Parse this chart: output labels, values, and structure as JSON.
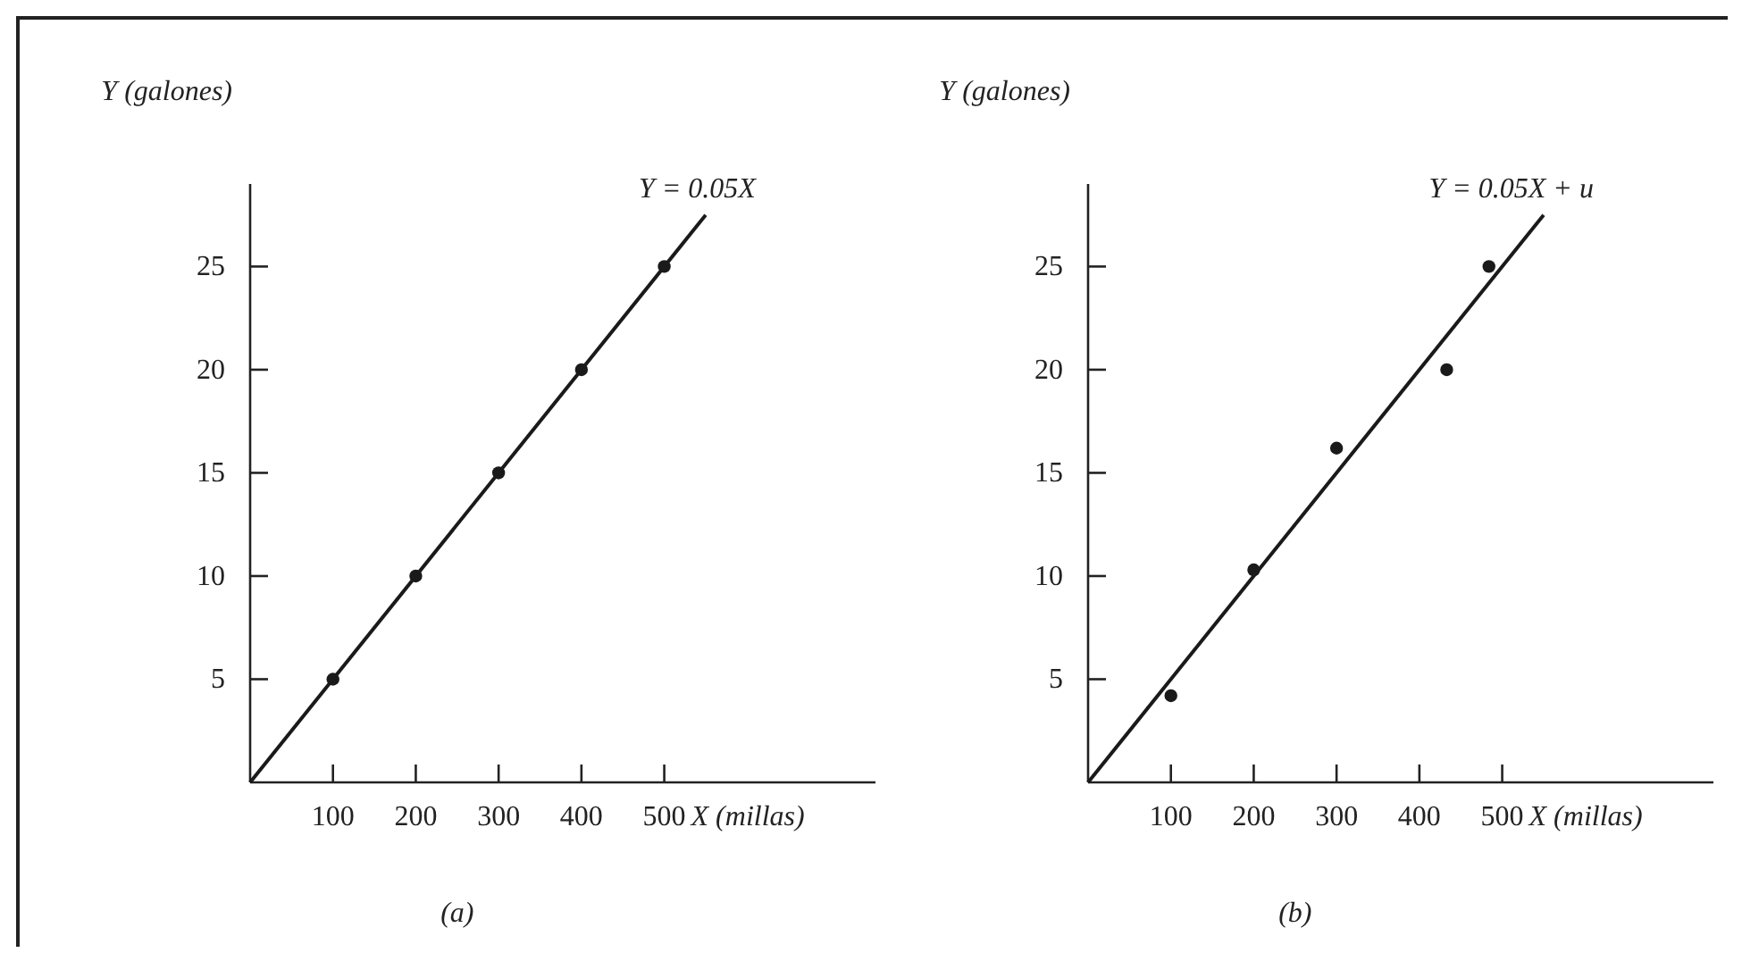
{
  "chart_data": [
    {
      "type": "scatter",
      "title": "(a)",
      "xlabel": "X (millas)",
      "ylabel": "Y (galones)",
      "xlim": [
        0,
        755
      ],
      "ylim": [
        0,
        29
      ],
      "xticks": [
        100,
        200,
        300,
        400,
        500
      ],
      "yticks": [
        5,
        10,
        15,
        20,
        25
      ],
      "grid": false,
      "marker": "circle",
      "annotations": [
        {
          "text": "Y = 0.05X",
          "x": 550,
          "y": 27.5
        }
      ],
      "series": [
        {
          "color": "#1a1a1a",
          "x": [
            100,
            200,
            300,
            400,
            500
          ],
          "values": [
            5,
            10,
            15,
            20,
            25
          ]
        },
        {
          "type": "line",
          "marker": "none",
          "color": "#1a1a1a",
          "x": [
            0,
            550
          ],
          "values": [
            0,
            27.5
          ]
        }
      ]
    },
    {
      "type": "scatter",
      "title": "(b)",
      "xlabel": "X (millas)",
      "ylabel": "Y (galones)",
      "xlim": [
        0,
        755
      ],
      "ylim": [
        0,
        29
      ],
      "xticks": [
        100,
        200,
        300,
        400,
        500
      ],
      "yticks": [
        5,
        10,
        15,
        20,
        25
      ],
      "grid": false,
      "marker": "circle",
      "annotations": [
        {
          "text": "Y = 0.05X + u",
          "x": 550,
          "y": 27.5
        }
      ],
      "series": [
        {
          "color": "#1a1a1a",
          "x": [
            100,
            200,
            300,
            433,
            484
          ],
          "values": [
            4.2,
            10.3,
            16.2,
            20,
            25
          ]
        },
        {
          "type": "line",
          "marker": "none",
          "color": "#1a1a1a",
          "x": [
            0,
            550
          ],
          "values": [
            0,
            27.5
          ]
        }
      ]
    }
  ]
}
